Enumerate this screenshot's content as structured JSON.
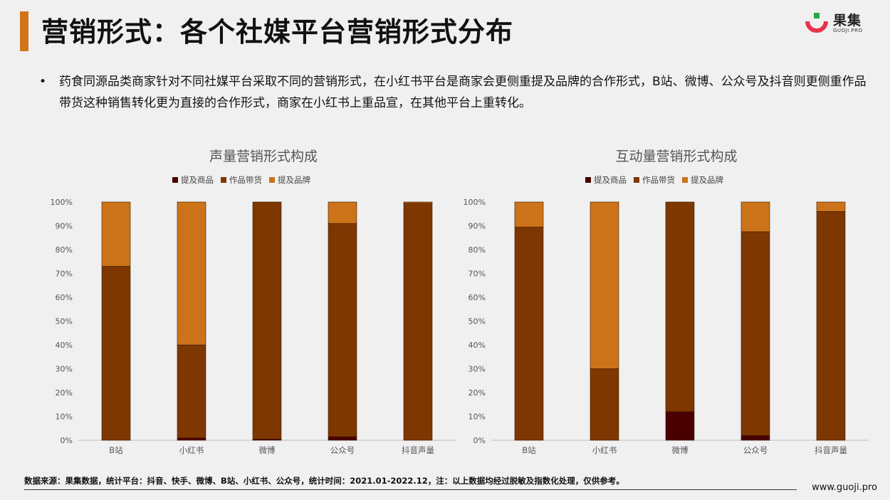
{
  "header": {
    "title": "营销形式：各个社媒平台营销形式分布",
    "logo_name": "果集",
    "logo_sub": "GUOJI.PRO",
    "accent": "#d4741a",
    "logo_icon": "guoji-logo-icon"
  },
  "bullet": {
    "marker": "•",
    "text": "药食同源品类商家针对不同社媒平台采取不同的营销形式，在小红书平台是商家会更侧重提及品牌的合作形式，B站、微博、公众号及抖音则更侧重作品带货这种销售转化更为直接的合作形式，商家在小红书上重品宣，在其他平台上重转化。"
  },
  "chart_data": [
    {
      "type": "bar",
      "stacked": true,
      "title": "声量营销形式构成",
      "categories": [
        "B站",
        "小红书",
        "微博",
        "公众号",
        "抖音声量"
      ],
      "series": [
        {
          "name": "提及商品",
          "color": "#4a0000",
          "values": [
            0,
            1,
            0.5,
            1.5,
            0
          ]
        },
        {
          "name": "作品带货",
          "color": "#7e3700",
          "values": [
            73,
            39,
            99.5,
            89.5,
            99.5
          ]
        },
        {
          "name": "提及品牌",
          "color": "#cc7319",
          "values": [
            27,
            60,
            0,
            9,
            0.5
          ]
        }
      ],
      "yticks": [
        "0%",
        "10%",
        "20%",
        "30%",
        "40%",
        "50%",
        "60%",
        "70%",
        "80%",
        "90%",
        "100%"
      ],
      "ylim": [
        0,
        100
      ],
      "legend": "top"
    },
    {
      "type": "bar",
      "stacked": true,
      "title": "互动量营销形式构成",
      "categories": [
        "B站",
        "小红书",
        "微博",
        "公众号",
        "抖音声量"
      ],
      "series": [
        {
          "name": "提及商品",
          "color": "#4a0000",
          "values": [
            0,
            0,
            12,
            2,
            0
          ]
        },
        {
          "name": "作品带货",
          "color": "#7e3700",
          "values": [
            89.5,
            30,
            88,
            85.5,
            96
          ]
        },
        {
          "name": "提及品牌",
          "color": "#cc7319",
          "values": [
            10.5,
            70,
            0,
            12.5,
            4
          ]
        }
      ],
      "yticks": [
        "0%",
        "10%",
        "20%",
        "30%",
        "40%",
        "50%",
        "60%",
        "70%",
        "80%",
        "90%",
        "100%"
      ],
      "ylim": [
        0,
        100
      ],
      "legend": "top"
    }
  ],
  "footer": {
    "note": "数据来源：果集数据，统计平台：抖音、快手、微博、B站、小红书、公众号，统计时间：2021.01-2022.12，注：以上数据均经过脱敏及指数化处理，仅供参考。",
    "url": "www.guoji.pro"
  }
}
